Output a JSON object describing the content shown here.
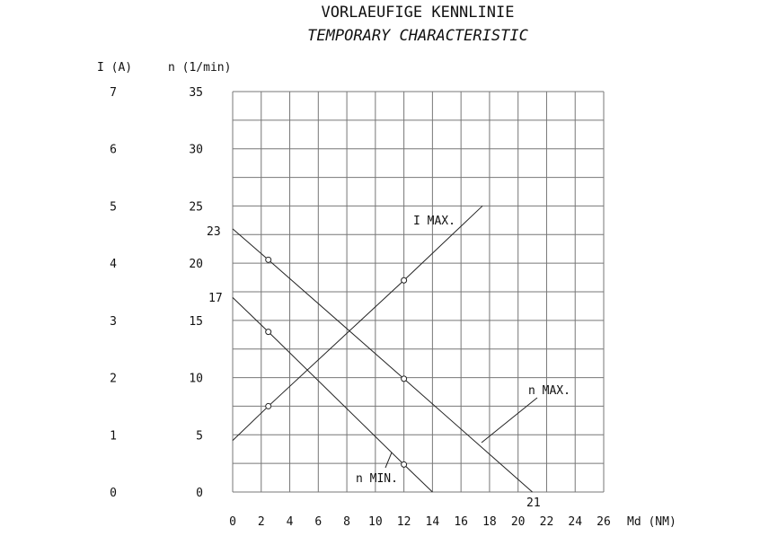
{
  "chart_data": {
    "type": "line",
    "title": "VORLAEUFIGE KENNLINIE",
    "subtitle": "TEMPORARY CHARACTERISTIC",
    "xlabel": "Md (NM)",
    "ylabel_left_outer": "I (A)",
    "ylabel_left_inner": "n (1/min)",
    "xlim": [
      0,
      26
    ],
    "ylim": [
      0,
      35
    ],
    "y2lim": [
      0,
      7
    ],
    "grid": true,
    "x_ticks": [
      "0",
      "2",
      "4",
      "6",
      "8",
      "10",
      "12",
      "14",
      "16",
      "18",
      "20",
      "22",
      "24",
      "26"
    ],
    "y_ticks": [
      "0",
      "5",
      "10",
      "15",
      "20",
      "25",
      "30",
      "35"
    ],
    "y2_ticks": [
      "0",
      "1",
      "2",
      "3",
      "4",
      "5",
      "6",
      "7"
    ],
    "series": [
      {
        "name": "n MAX.",
        "axis": "n",
        "x": [
          0,
          2.5,
          12,
          21
        ],
        "y": [
          23,
          20.3,
          9.9,
          0
        ],
        "markers_at": [
          2.5,
          12
        ]
      },
      {
        "name": "n MIN.",
        "axis": "n",
        "x": [
          0,
          2.5,
          12,
          14
        ],
        "y": [
          17,
          14,
          2.4,
          0
        ],
        "markers_at": [
          2.5,
          12
        ]
      },
      {
        "name": "I MAX.",
        "axis": "I",
        "x": [
          0,
          2.5,
          12,
          17.5
        ],
        "y": [
          0.9,
          1.5,
          3.7,
          5.0
        ],
        "markers_at": [
          2.5,
          12
        ]
      }
    ],
    "annotations": [
      "23",
      "17",
      "21"
    ]
  }
}
